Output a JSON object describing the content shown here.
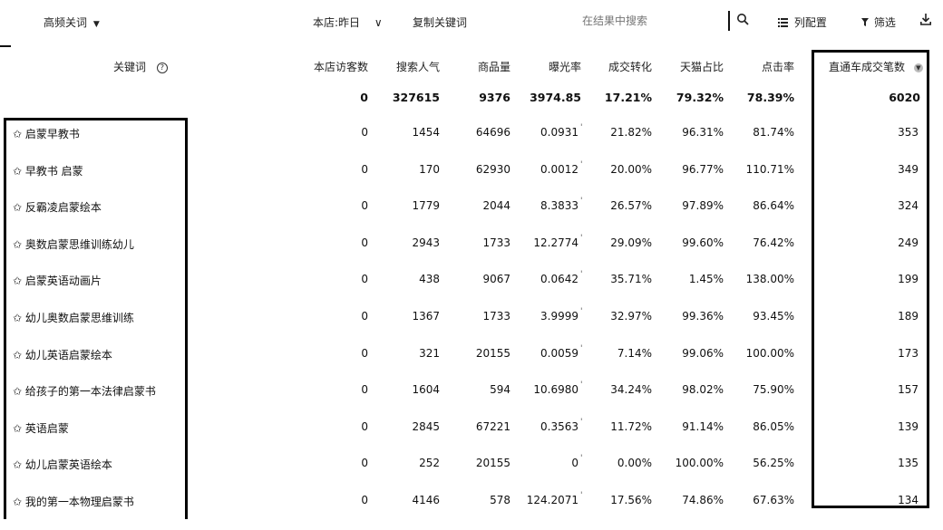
{
  "toolbar": {
    "keyword_type": "高频关词",
    "keyword_type_arrow": "▼",
    "date_range": "本店:昨日",
    "date_range_arrow": "∨",
    "copy_keywords": "复制关键词",
    "search_placeholder": "在结果中搜索",
    "column_config": "列配置",
    "filter": "筛选",
    "download_icon": "download-icon"
  },
  "table": {
    "headers": {
      "keyword": "关键词",
      "visitors": "本店访客数",
      "search_popularity": "搜索人气",
      "product_count": "商品量",
      "exposure_rate": "曝光率",
      "conversion": "成交转化",
      "tmall_share": "天猫占比",
      "click_rate": "点击率",
      "orders": "直通车成交笔数"
    },
    "totals": {
      "visitors": "0",
      "search_popularity": "327615",
      "product_count": "9376",
      "exposure_rate": "3974.85",
      "conversion": "17.21%",
      "tmall_share": "79.32%",
      "click_rate": "78.39%",
      "orders": "6020"
    },
    "rows": [
      {
        "keyword": "✩ 启蒙早教书",
        "visitors": "0",
        "search_popularity": "1454",
        "product_count": "64696",
        "exposure_rate": "0.0931",
        "conversion": "21.82%",
        "tmall_share": "96.31%",
        "click_rate": "81.74%",
        "orders": "353"
      },
      {
        "keyword": "✩ 早教书 启蒙",
        "visitors": "0",
        "search_popularity": "170",
        "product_count": "62930",
        "exposure_rate": "0.0012",
        "conversion": "20.00%",
        "tmall_share": "96.77%",
        "click_rate": "110.71%",
        "orders": "349"
      },
      {
        "keyword": "✩ 反霸凌启蒙绘本",
        "visitors": "0",
        "search_popularity": "1779",
        "product_count": "2044",
        "exposure_rate": "8.3833",
        "conversion": "26.57%",
        "tmall_share": "97.89%",
        "click_rate": "86.64%",
        "orders": "324"
      },
      {
        "keyword": "✩ 奥数启蒙思维训练幼儿",
        "visitors": "0",
        "search_popularity": "2943",
        "product_count": "1733",
        "exposure_rate": "12.2774",
        "conversion": "29.09%",
        "tmall_share": "99.60%",
        "click_rate": "76.42%",
        "orders": "249"
      },
      {
        "keyword": "✩ 启蒙英语动画片",
        "visitors": "0",
        "search_popularity": "438",
        "product_count": "9067",
        "exposure_rate": "0.0642",
        "conversion": "35.71%",
        "tmall_share": "1.45%",
        "click_rate": "138.00%",
        "orders": "199"
      },
      {
        "keyword": "✩ 幼儿奥数启蒙思维训练",
        "visitors": "0",
        "search_popularity": "1367",
        "product_count": "1733",
        "exposure_rate": "3.9999",
        "conversion": "32.97%",
        "tmall_share": "99.36%",
        "click_rate": "93.45%",
        "orders": "189"
      },
      {
        "keyword": "✩ 幼儿英语启蒙绘本",
        "visitors": "0",
        "search_popularity": "321",
        "product_count": "20155",
        "exposure_rate": "0.0059",
        "conversion": "7.14%",
        "tmall_share": "99.06%",
        "click_rate": "100.00%",
        "orders": "173"
      },
      {
        "keyword": "✩ 给孩子的第一本法律启蒙书",
        "visitors": "0",
        "search_popularity": "1604",
        "product_count": "594",
        "exposure_rate": "10.6980",
        "conversion": "34.24%",
        "tmall_share": "98.02%",
        "click_rate": "75.90%",
        "orders": "157"
      },
      {
        "keyword": "✩ 英语启蒙",
        "visitors": "0",
        "search_popularity": "2845",
        "product_count": "67221",
        "exposure_rate": "0.3563",
        "conversion": "11.72%",
        "tmall_share": "91.14%",
        "click_rate": "86.05%",
        "orders": "139"
      },
      {
        "keyword": "✩ 幼儿启蒙英语绘本",
        "visitors": "0",
        "search_popularity": "252",
        "product_count": "20155",
        "exposure_rate": "0",
        "conversion": "0.00%",
        "tmall_share": "100.00%",
        "click_rate": "56.25%",
        "orders": "135"
      },
      {
        "keyword": "✩ 我的第一本物理启蒙书",
        "visitors": "0",
        "search_popularity": "4146",
        "product_count": "578",
        "exposure_rate": "124.2071",
        "conversion": "17.56%",
        "tmall_share": "74.86%",
        "click_rate": "67.63%",
        "orders": "134"
      }
    ]
  }
}
